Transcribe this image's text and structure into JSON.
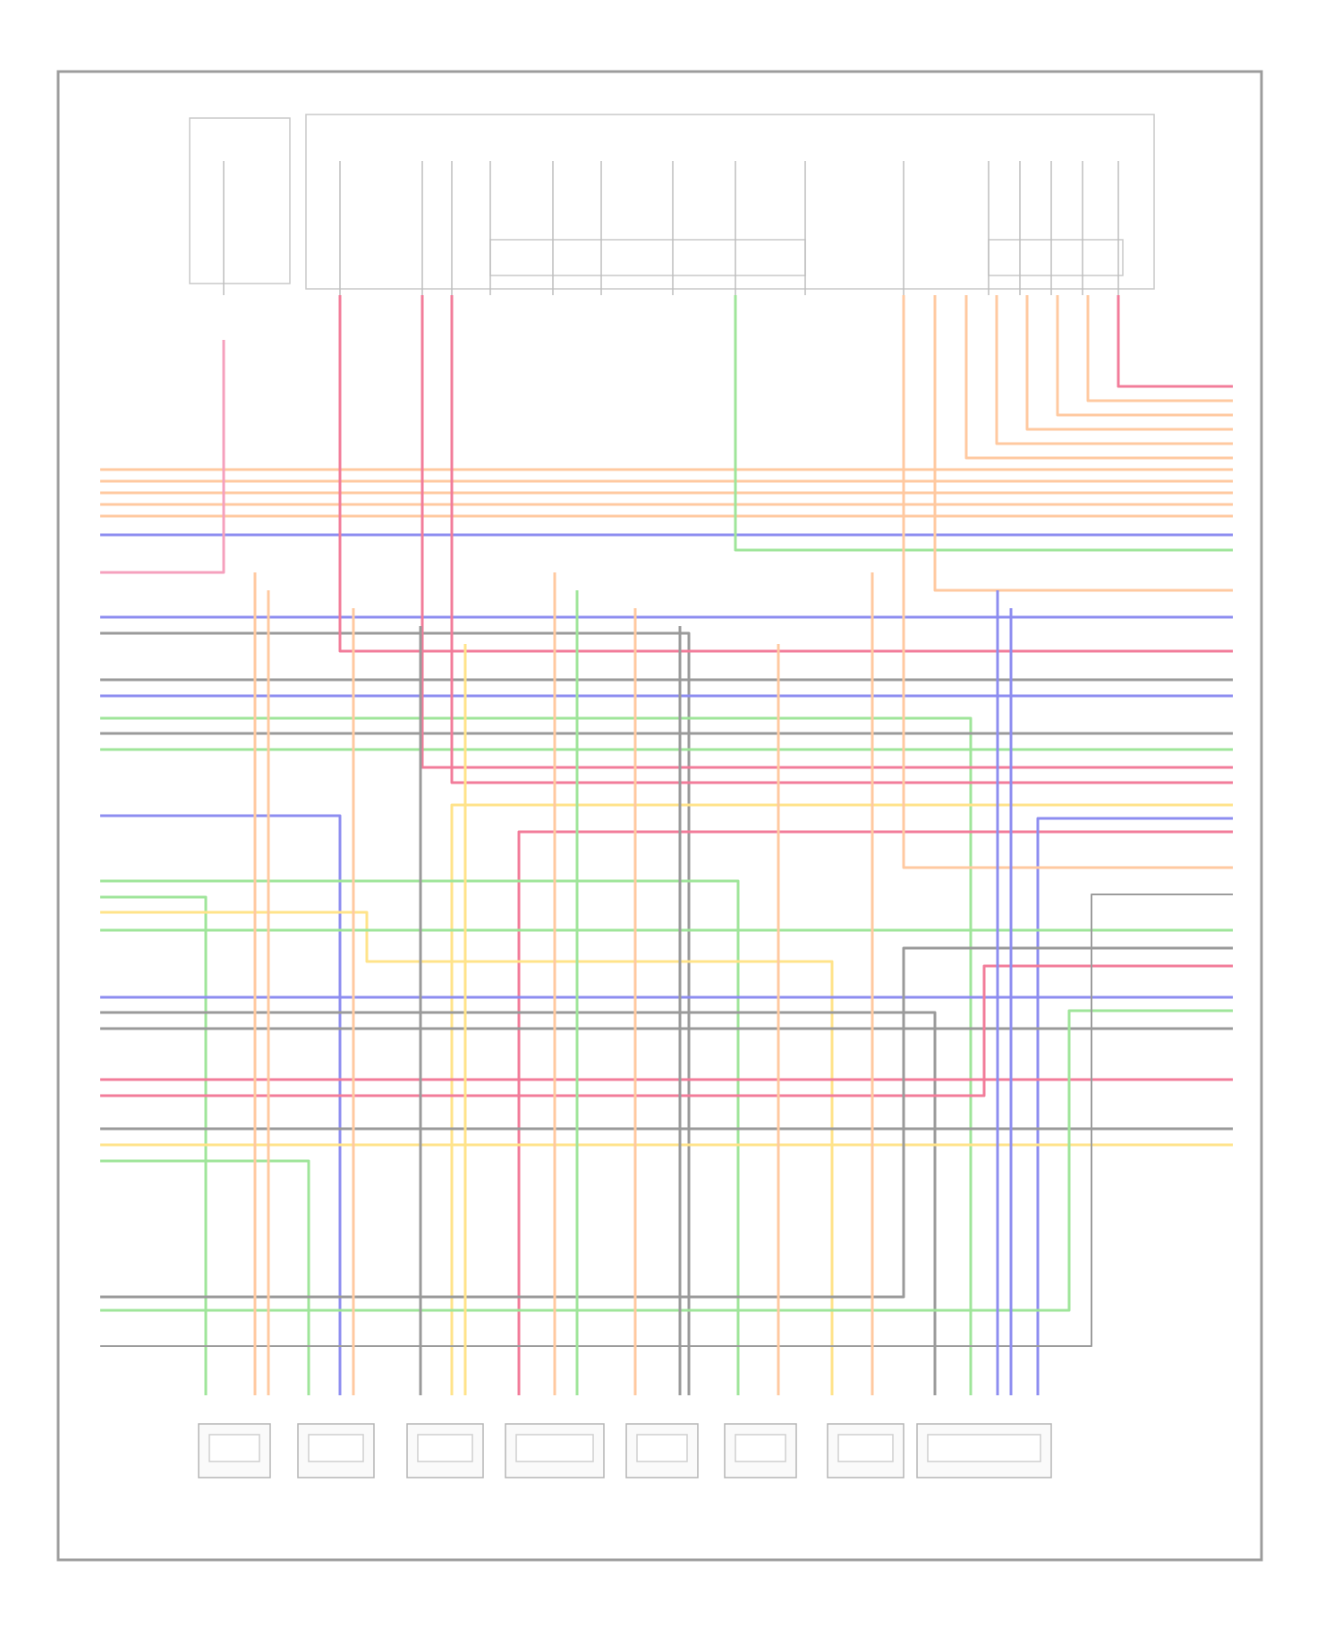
{
  "diagram": {
    "footer_code": "",
    "top_labels": [],
    "left_pins": [],
    "right_pins": [],
    "components": [],
    "wire_colors": {
      "orange": "#ffc9a0",
      "red": "#f27c9a",
      "pink": "#f5a0bd",
      "blue": "#8d8df0",
      "green": "#9fe59a",
      "gray": "#9a9a9a",
      "yellow": "#ffe38a",
      "frame": "#9c9c9c"
    }
  }
}
